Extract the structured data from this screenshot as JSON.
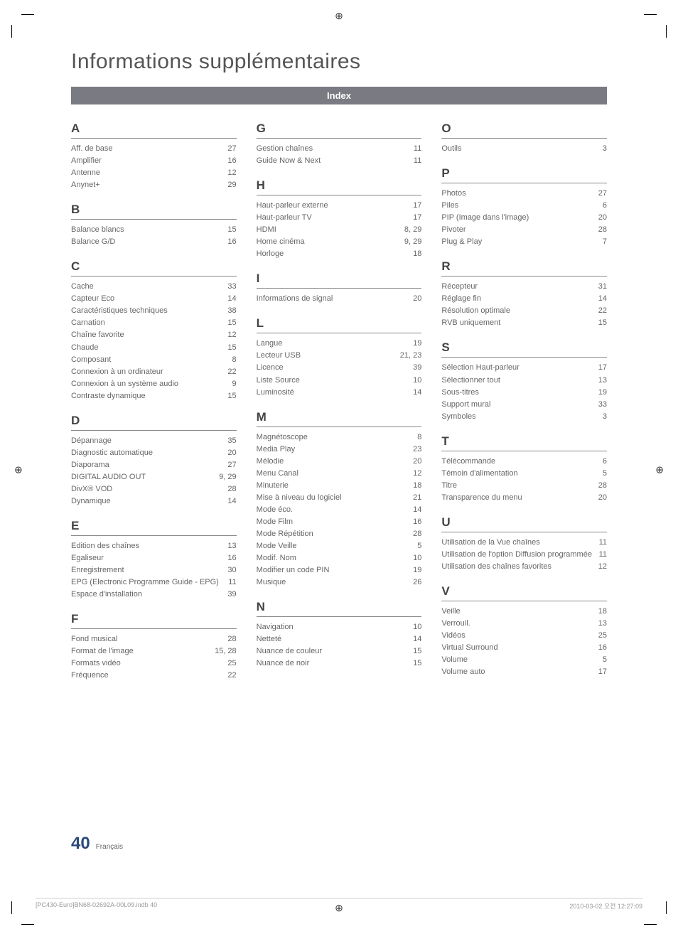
{
  "title": "Informations supplémentaires",
  "index_label": "Index",
  "footer": {
    "page_number": "40",
    "language": "Français"
  },
  "bottom": {
    "left": "[PC430-Euro]BN68-02692A-00L09.indb   40",
    "right": "2010-03-02   오전 12:27:09"
  },
  "columns": [
    [
      {
        "letter": "A",
        "rows": [
          {
            "t": "Aff. de base",
            "p": "27"
          },
          {
            "t": "Amplifier",
            "p": "16"
          },
          {
            "t": "Antenne",
            "p": "12"
          },
          {
            "t": "Anynet+",
            "p": "29"
          }
        ]
      },
      {
        "letter": "B",
        "rows": [
          {
            "t": "Balance blancs",
            "p": "15"
          },
          {
            "t": "Balance G/D",
            "p": "16"
          }
        ]
      },
      {
        "letter": "C",
        "rows": [
          {
            "t": "Cache",
            "p": "33"
          },
          {
            "t": "Capteur Eco",
            "p": "14"
          },
          {
            "t": "Caractéristiques techniques",
            "p": "38"
          },
          {
            "t": "Carnation",
            "p": "15"
          },
          {
            "t": "Chaîne favorite",
            "p": "12"
          },
          {
            "t": "Chaude",
            "p": "15"
          },
          {
            "t": "Composant",
            "p": "8"
          },
          {
            "t": "Connexion à un ordinateur",
            "p": "22"
          },
          {
            "t": "Connexion à un système audio",
            "p": "9"
          },
          {
            "t": "Contraste dynamique",
            "p": "15"
          }
        ]
      },
      {
        "letter": "D",
        "rows": [
          {
            "t": "Dépannage",
            "p": "35"
          },
          {
            "t": "Diagnostic automatique",
            "p": "20"
          },
          {
            "t": "Diaporama",
            "p": "27"
          },
          {
            "t": "DIGITAL AUDIO OUT",
            "p": "9, 29"
          },
          {
            "t": "DivX® VOD",
            "p": "28"
          },
          {
            "t": "Dynamique",
            "p": "14"
          }
        ]
      },
      {
        "letter": "E",
        "rows": [
          {
            "t": "Edition des chaînes",
            "p": "13"
          },
          {
            "t": "Egaliseur",
            "p": "16"
          },
          {
            "t": "Enregistrement",
            "p": "30"
          },
          {
            "t": "EPG (Electronic Programme Guide - EPG)",
            "p": "11"
          },
          {
            "t": "Espace d'installation",
            "p": "39"
          }
        ]
      },
      {
        "letter": "F",
        "rows": [
          {
            "t": "Fond musical",
            "p": "28"
          },
          {
            "t": "Format de l'image",
            "p": "15, 28"
          },
          {
            "t": "Formats vidéo",
            "p": "25"
          },
          {
            "t": "Fréquence",
            "p": "22"
          }
        ]
      }
    ],
    [
      {
        "letter": "G",
        "rows": [
          {
            "t": "Gestion chaînes",
            "p": "11"
          },
          {
            "t": "Guide Now & Next",
            "p": "11"
          }
        ]
      },
      {
        "letter": "H",
        "rows": [
          {
            "t": "Haut-parleur externe",
            "p": "17"
          },
          {
            "t": "Haut-parleur TV",
            "p": "17"
          },
          {
            "t": "HDMI",
            "p": "8, 29"
          },
          {
            "t": "Home cinéma",
            "p": "9, 29"
          },
          {
            "t": "Horloge",
            "p": "18"
          }
        ]
      },
      {
        "letter": "I",
        "rows": [
          {
            "t": "Informations de signal",
            "p": "20"
          }
        ]
      },
      {
        "letter": "L",
        "rows": [
          {
            "t": "Langue",
            "p": "19"
          },
          {
            "t": "Lecteur USB",
            "p": "21, 23"
          },
          {
            "t": "Licence",
            "p": "39"
          },
          {
            "t": "Liste Source",
            "p": "10"
          },
          {
            "t": "Luminosité",
            "p": "14"
          }
        ]
      },
      {
        "letter": "M",
        "rows": [
          {
            "t": "Magnétoscope",
            "p": "8"
          },
          {
            "t": "Media Play",
            "p": "23"
          },
          {
            "t": "Mélodie",
            "p": "20"
          },
          {
            "t": "Menu Canal",
            "p": "12"
          },
          {
            "t": "Minuterie",
            "p": "18"
          },
          {
            "t": "Mise à niveau du logiciel",
            "p": "21"
          },
          {
            "t": "Mode éco.",
            "p": "14"
          },
          {
            "t": "Mode Film",
            "p": "16"
          },
          {
            "t": "Mode Répétition",
            "p": "28"
          },
          {
            "t": "Mode Veille",
            "p": "5"
          },
          {
            "t": "Modif. Nom",
            "p": "10"
          },
          {
            "t": "Modifier un code PIN",
            "p": "19"
          },
          {
            "t": "Musique",
            "p": "26"
          }
        ]
      },
      {
        "letter": "N",
        "rows": [
          {
            "t": "Navigation",
            "p": "10"
          },
          {
            "t": "Netteté",
            "p": "14"
          },
          {
            "t": "Nuance de couleur",
            "p": "15"
          },
          {
            "t": "Nuance de noir",
            "p": "15"
          }
        ]
      }
    ],
    [
      {
        "letter": "O",
        "rows": [
          {
            "t": "Outils",
            "p": "3"
          }
        ]
      },
      {
        "letter": "P",
        "rows": [
          {
            "t": "Photos",
            "p": "27"
          },
          {
            "t": "Piles",
            "p": "6"
          },
          {
            "t": "PIP (Image dans l'image)",
            "p": "20"
          },
          {
            "t": "Pivoter",
            "p": "28"
          },
          {
            "t": "Plug & Play",
            "p": "7"
          }
        ]
      },
      {
        "letter": "R",
        "rows": [
          {
            "t": "Récepteur",
            "p": "31"
          },
          {
            "t": "Réglage fin",
            "p": "14"
          },
          {
            "t": "Résolution optimale",
            "p": "22"
          },
          {
            "t": "RVB uniquement",
            "p": "15"
          }
        ]
      },
      {
        "letter": "S",
        "rows": [
          {
            "t": "Sélection Haut-parleur",
            "p": "17"
          },
          {
            "t": "Sélectionner tout",
            "p": "13"
          },
          {
            "t": "Sous-titres",
            "p": "19"
          },
          {
            "t": "Support mural",
            "p": "33"
          },
          {
            "t": "Symboles",
            "p": "3"
          }
        ]
      },
      {
        "letter": "T",
        "rows": [
          {
            "t": "Télécommande",
            "p": "6"
          },
          {
            "t": "Témoin d'alimentation",
            "p": "5"
          },
          {
            "t": "Titre",
            "p": "28"
          },
          {
            "t": "Transparence du menu",
            "p": "20"
          }
        ]
      },
      {
        "letter": "U",
        "rows": [
          {
            "t": "Utilisation de la Vue chaînes",
            "p": "11"
          },
          {
            "t": "Utilisation de l'option Diffusion programmée",
            "p": "11"
          },
          {
            "t": "Utilisation des chaînes favorites",
            "p": "12"
          }
        ]
      },
      {
        "letter": "V",
        "rows": [
          {
            "t": "Veille",
            "p": "18"
          },
          {
            "t": "Verrouil.",
            "p": "13"
          },
          {
            "t": "Vidéos",
            "p": "25"
          },
          {
            "t": "Virtual Surround",
            "p": "16"
          },
          {
            "t": "Volume",
            "p": "5"
          },
          {
            "t": "Volume auto",
            "p": "17"
          }
        ]
      }
    ]
  ]
}
